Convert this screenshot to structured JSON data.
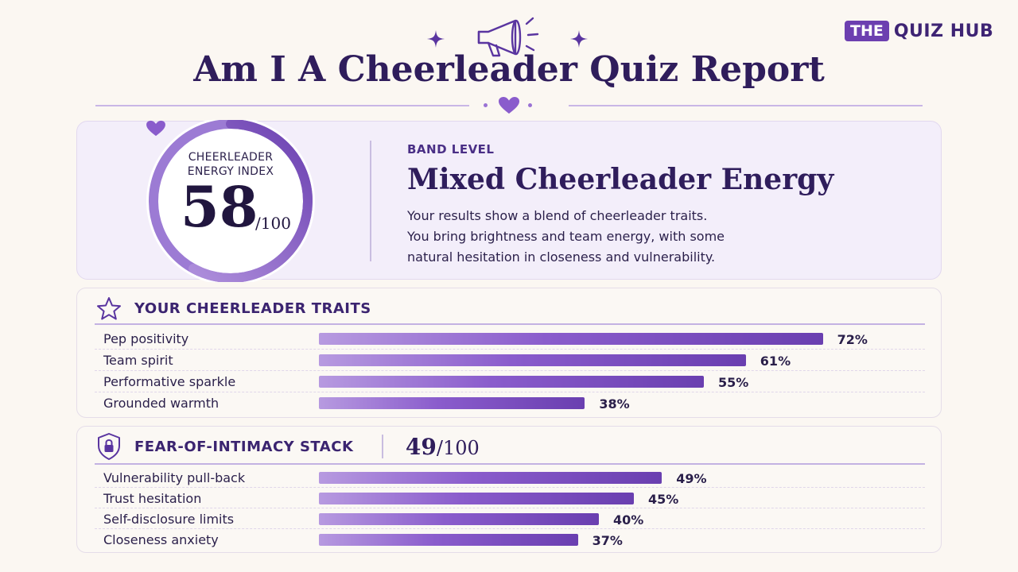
{
  "brand": {
    "box": "THE",
    "text": "QUIZ HUB"
  },
  "title": "Am I A Cheerleader Quiz Report",
  "gauge": {
    "label_line1": "CHEERLEADER",
    "label_line2": "ENERGY INDEX",
    "score": "58",
    "max": "/100",
    "fraction": 0.58
  },
  "band": {
    "label": "BAND LEVEL",
    "title": "Mixed Cheerleader Energy",
    "desc_line1": "Your results show a blend of cheerleader traits.",
    "desc_line2": "You bring brightness and team energy, with some",
    "desc_line3": "natural hesitation in closeness and vulnerability."
  },
  "traits": {
    "title": "YOUR CHEERLEADER TRAITS",
    "items": [
      {
        "label": "Pep positivity",
        "value": 72,
        "display": "72%"
      },
      {
        "label": "Team spirit",
        "value": 61,
        "display": "61%"
      },
      {
        "label": "Performative sparkle",
        "value": 55,
        "display": "55%"
      },
      {
        "label": "Grounded warmth",
        "value": 38,
        "display": "38%"
      }
    ]
  },
  "fear": {
    "title": "FEAR-OF-INTIMACY STACK",
    "score": "49",
    "max": "/100",
    "items": [
      {
        "label": "Vulnerability pull-back",
        "value": 49,
        "display": "49%"
      },
      {
        "label": "Trust hesitation",
        "value": 45,
        "display": "45%"
      },
      {
        "label": "Self-disclosure limits",
        "value": 40,
        "display": "40%"
      },
      {
        "label": "Closeness anxiety",
        "value": 37,
        "display": "37%"
      }
    ]
  },
  "colors": {
    "accent": "#6c3fb0",
    "accent_light": "#b79ae0",
    "ink": "#2f1d5c"
  },
  "icons": [
    "sparkle-icon",
    "megaphone-icon",
    "heart-icon",
    "star-icon",
    "shield-lock-icon"
  ]
}
